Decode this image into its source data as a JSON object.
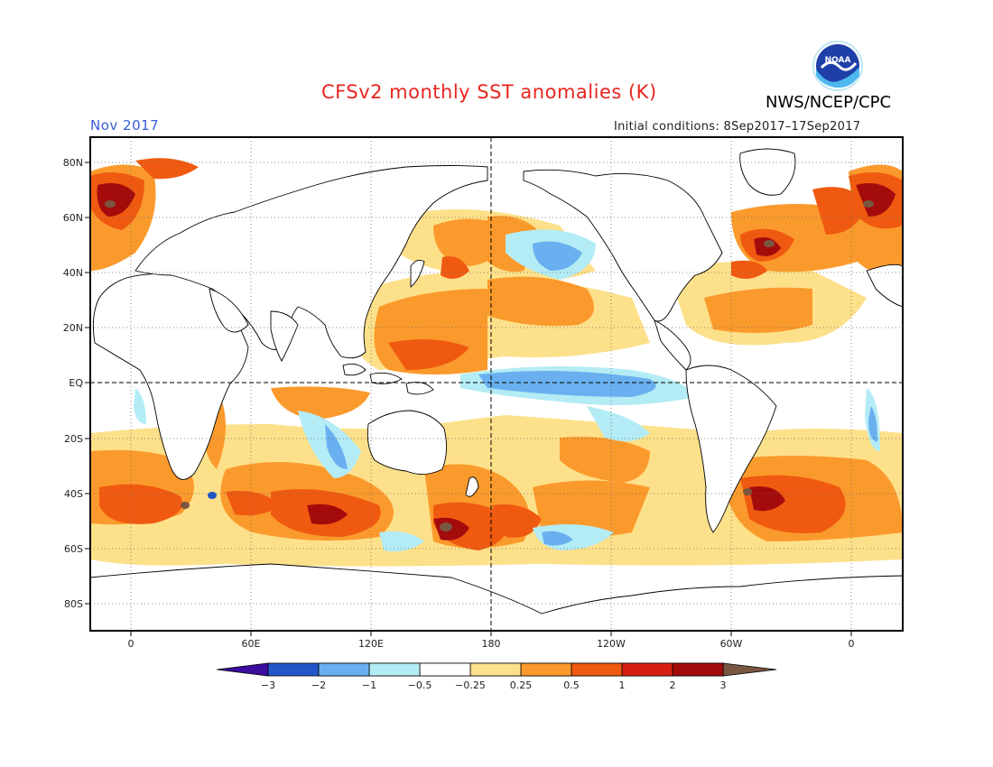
{
  "header": {
    "title": "CFSv2 monthly SST anomalies (K)",
    "month": "Nov 2017",
    "initial_conditions": "Initial conditions: 8Sep2017–17Sep2017",
    "agency": "NWS/NCEP/CPC",
    "logo_text": "NOAA"
  },
  "colors": {
    "title": "#e8251f",
    "month": "#3a5cd8",
    "scale": [
      "#3d0d9f",
      "#2255c8",
      "#3f86e0",
      "#6ab0f0",
      "#b3ecf5",
      "#ffffff",
      "#fde08a",
      "#fb9a2c",
      "#f05a10",
      "#d81e12",
      "#a40c0c",
      "#7a5640"
    ]
  },
  "axes": {
    "lat_labels": [
      "80N",
      "60N",
      "40N",
      "20N",
      "EQ",
      "20S",
      "40S",
      "60S",
      "80S"
    ],
    "lon_labels": [
      "0",
      "60E",
      "120E",
      "180",
      "120W",
      "60W",
      "0"
    ]
  },
  "colorbar": {
    "labels": [
      "−3",
      "−2",
      "−1",
      "−0.5",
      "−0.25",
      "0.25",
      "0.5",
      "1",
      "2",
      "3"
    ]
  }
}
